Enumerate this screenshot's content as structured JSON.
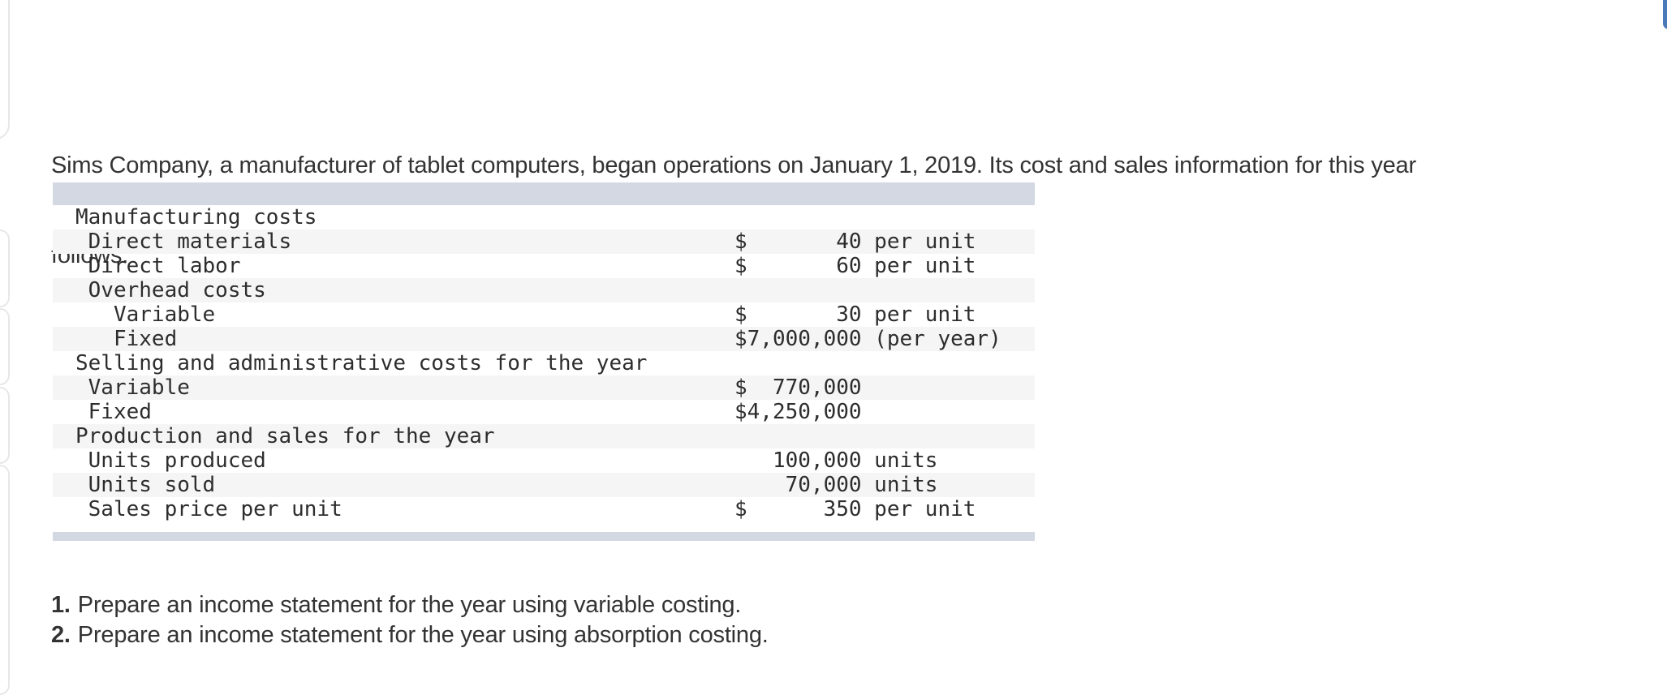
{
  "page": {
    "intro_lines": [
      "Sims Company, a manufacturer of tablet computers, began operations on January 1, 2019. Its cost and sales information for this year",
      "follows."
    ],
    "instructions": [
      {
        "num": "1.",
        "text": "Prepare an income statement for the year using variable costing."
      },
      {
        "num": "2.",
        "text": "Prepare an income statement for the year using absorption costing."
      }
    ]
  },
  "table": {
    "rows": [
      {
        "label": "Manufacturing costs",
        "value": ""
      },
      {
        "label": " Direct materials",
        "value": "$       40 per unit"
      },
      {
        "label": " Direct labor",
        "value": "$       60 per unit"
      },
      {
        "label": " Overhead costs",
        "value": ""
      },
      {
        "label": "   Variable",
        "value": "$       30 per unit"
      },
      {
        "label": "   Fixed",
        "value": "$7,000,000 (per year)"
      },
      {
        "label": "Selling and administrative costs for the year",
        "value": ""
      },
      {
        "label": " Variable",
        "value": "$  770,000"
      },
      {
        "label": " Fixed",
        "value": "$4,250,000"
      },
      {
        "label": "Production and sales for the year",
        "value": ""
      },
      {
        "label": " Units produced",
        "value": "   100,000 units"
      },
      {
        "label": " Units sold",
        "value": "    70,000 units"
      },
      {
        "label": " Sales price per unit",
        "value": "$      350 per unit"
      }
    ]
  },
  "colors": {
    "table_bar": "#d3d8e2",
    "row_alt": "#f5f5f6",
    "accent_blue": "#4a7ab8"
  }
}
